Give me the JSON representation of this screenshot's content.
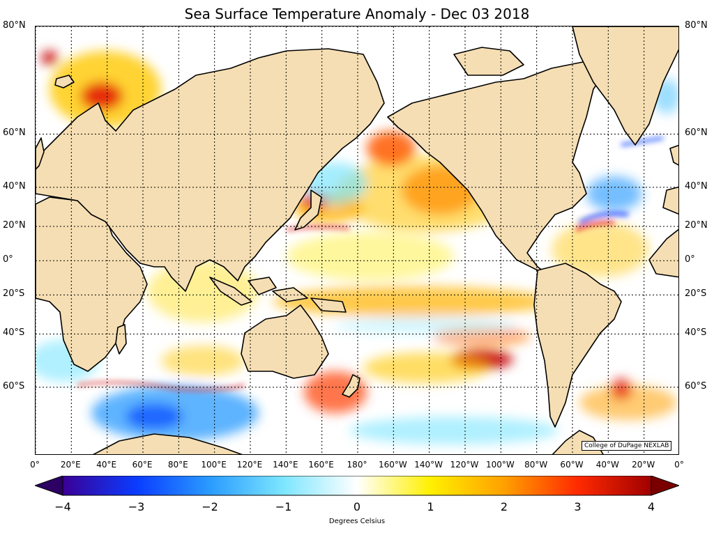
{
  "title": "Sea Surface Temperature Anomaly - Dec 03 2018",
  "credit": "College of DuPage NEXLAB",
  "latitude_labels": [
    "80°N",
    "60°N",
    "40°N",
    "20°N",
    "0°",
    "20°S",
    "40°S",
    "60°S"
  ],
  "longitude_labels": [
    "0°",
    "20°E",
    "40°E",
    "60°E",
    "80°E",
    "100°E",
    "120°E",
    "140°E",
    "160°E",
    "180°",
    "160°W",
    "140°W",
    "120°W",
    "100°W",
    "80°W",
    "60°W",
    "40°W",
    "20°W",
    "0°"
  ],
  "colorbar": {
    "ticks": [
      "−4",
      "−3",
      "−2",
      "−1",
      "0",
      "1",
      "2",
      "3",
      "4"
    ],
    "label": "Degrees Celsius",
    "min": -4,
    "max": 4,
    "colors": [
      "#3a0096",
      "#0a3cff",
      "#2a9bff",
      "#7de6ff",
      "#ffffff",
      "#fff000",
      "#ffa000",
      "#ff2a00",
      "#a00000"
    ]
  },
  "land_color": "#f5deb3",
  "map": {
    "projection": "Mercator",
    "lat_range": [
      -75,
      80
    ],
    "lon_range": [
      0,
      360
    ],
    "parallels": [
      80,
      60,
      40,
      20,
      0,
      -20,
      -40,
      -60
    ],
    "meridian_step": 20
  }
}
